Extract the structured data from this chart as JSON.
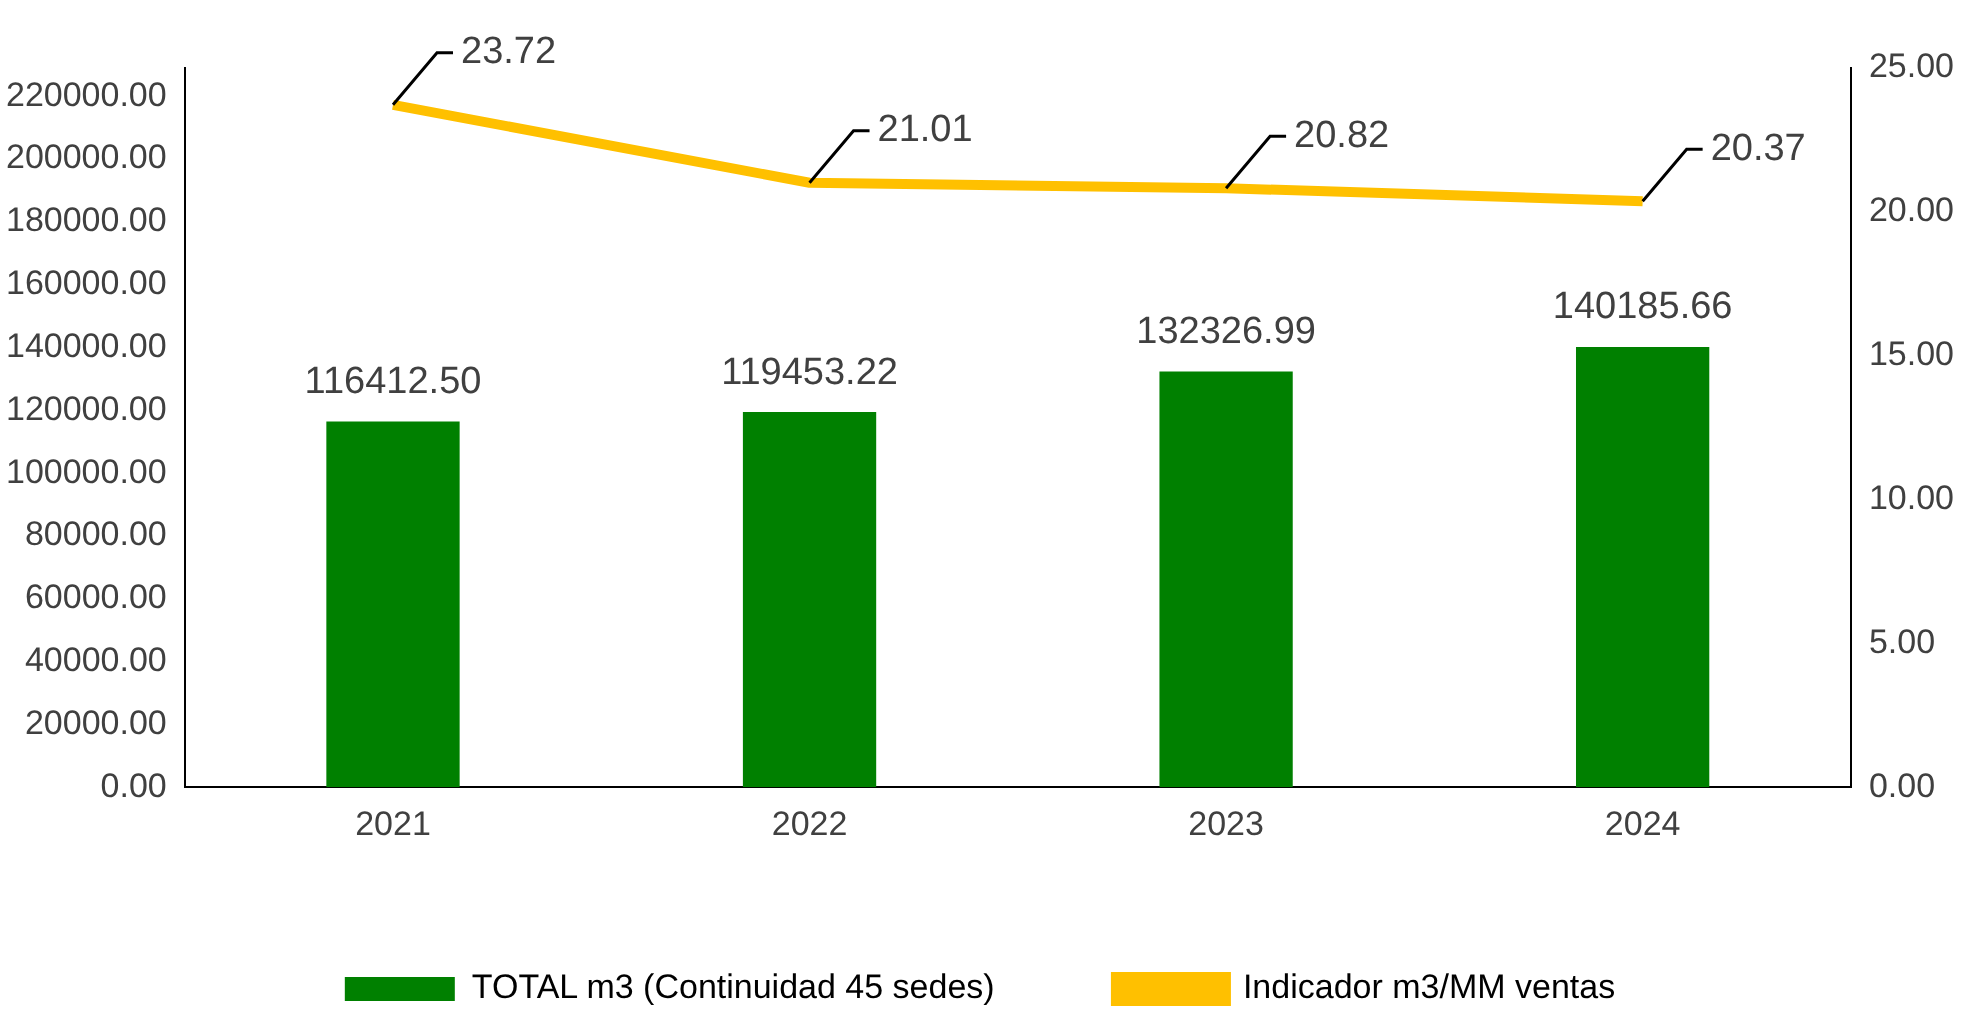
{
  "chart_data": {
    "type": "bar",
    "categories": [
      "2021",
      "2022",
      "2023",
      "2024"
    ],
    "series": [
      {
        "name": "TOTAL m3 (Continuidad 45 sedes)",
        "color": "#008000",
        "values": [
          116412.5,
          119453.22,
          132326.99,
          140185.66
        ],
        "value_labels": [
          "116412.50",
          "119453.22",
          "132326.99",
          "140185.66"
        ]
      },
      {
        "name": "Indicador m3/MM ventas",
        "type": "line",
        "axis": "y2",
        "color": "#ffc000",
        "values": [
          23.72,
          21.01,
          20.82,
          20.37
        ],
        "value_labels": [
          "23.72",
          "21.01",
          "20.82",
          "20.37"
        ]
      }
    ],
    "ylim": [
      0,
      229000
    ],
    "yticks": [
      {
        "value": 0,
        "label": "0.00"
      },
      {
        "value": 20000,
        "label": "20000.00"
      },
      {
        "value": 40000,
        "label": "40000.00"
      },
      {
        "value": 60000,
        "label": "60000.00"
      },
      {
        "value": 80000,
        "label": "80000.00"
      },
      {
        "value": 100000,
        "label": "100000.00"
      },
      {
        "value": 120000,
        "label": "120000.00"
      },
      {
        "value": 140000,
        "label": "140000.00"
      },
      {
        "value": 160000,
        "label": "160000.00"
      },
      {
        "value": 180000,
        "label": "180000.00"
      },
      {
        "value": 200000,
        "label": "200000.00"
      },
      {
        "value": 220000,
        "label": "220000.00"
      }
    ],
    "y2lim": [
      0,
      25
    ],
    "y2ticks": [
      {
        "value": 0,
        "label": "0.00"
      },
      {
        "value": 5,
        "label": "5.00"
      },
      {
        "value": 10,
        "label": "10.00"
      },
      {
        "value": 15,
        "label": "15.00"
      },
      {
        "value": 20,
        "label": "20.00"
      },
      {
        "value": 25,
        "label": "25.00"
      }
    ],
    "grid": false,
    "legend": "bottom"
  }
}
